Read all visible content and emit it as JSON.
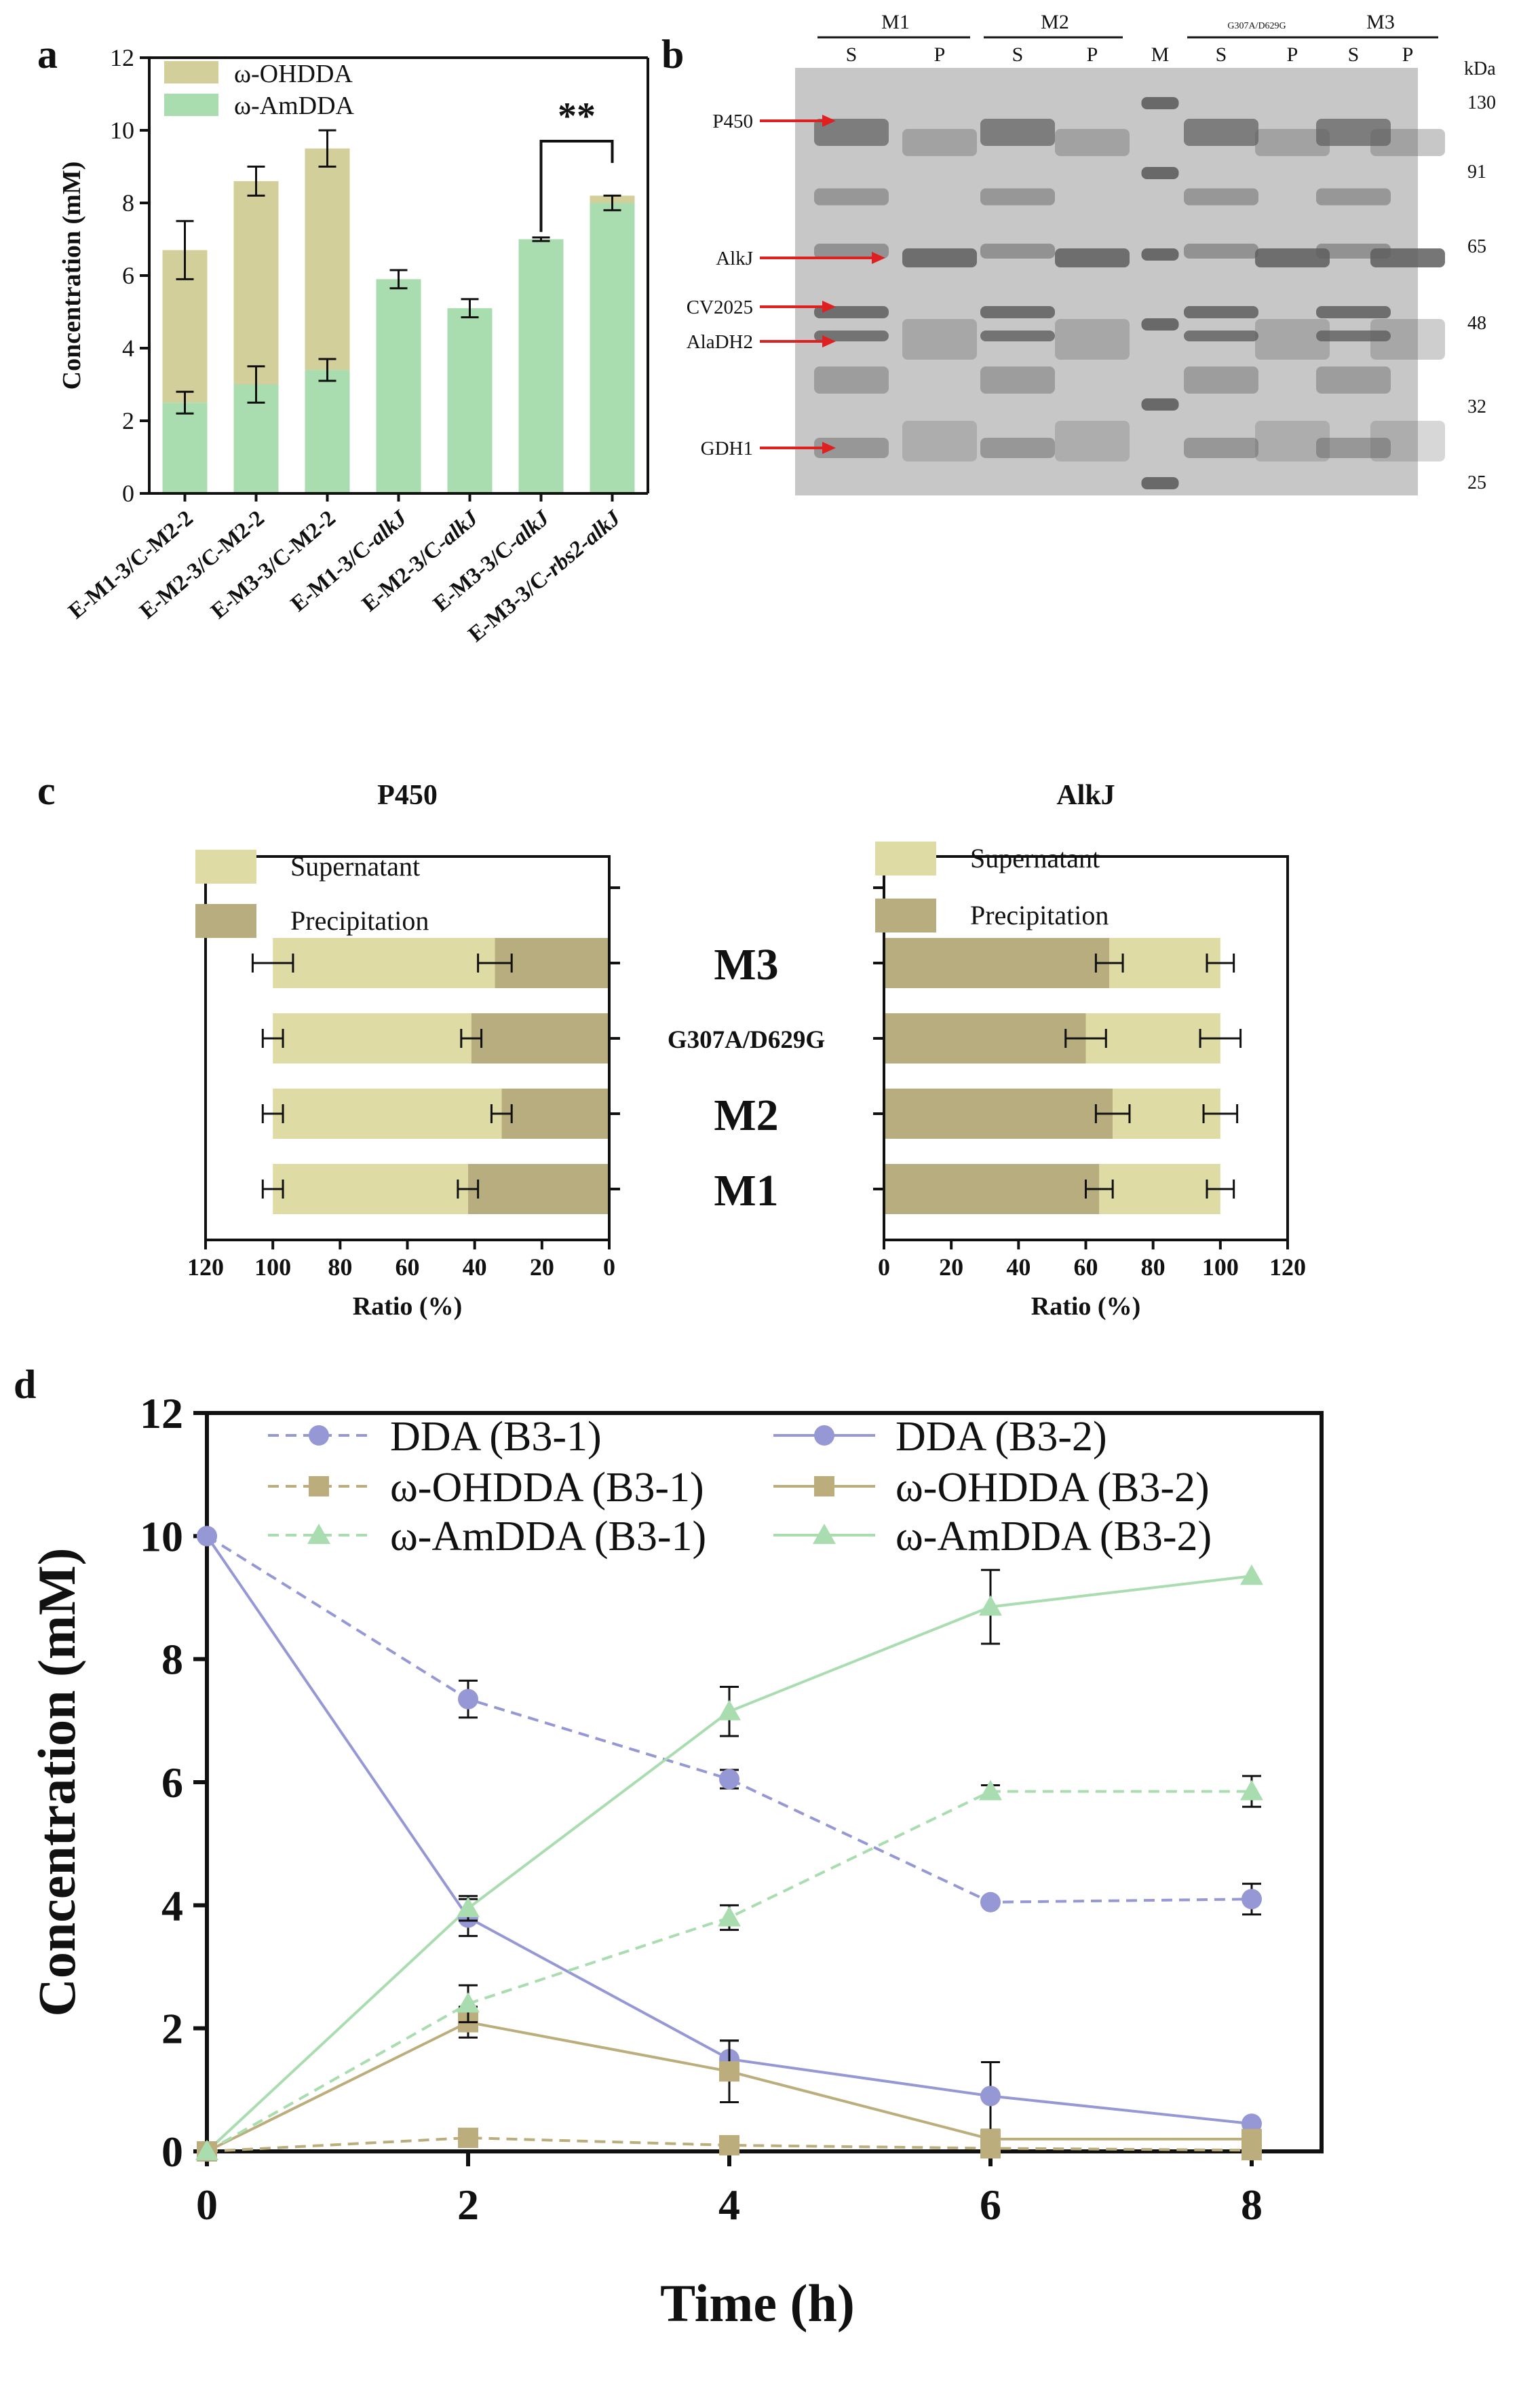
{
  "panels": {
    "a": "a",
    "b": "b",
    "c": "c",
    "d": "d"
  },
  "colors": {
    "ohdda_bar": "#d3cf9a",
    "amdda_bar": "#a9ddb0",
    "gel_bg": "#c7c7c7",
    "gel_band": "#5e5e5e",
    "arrow": "#e02020",
    "supernatant": "#dfdba4",
    "precipitation": "#b8ad7e",
    "dda": "#9698d6",
    "ohdda_line": "#bcae7c",
    "amdda_line": "#a9ddb0"
  },
  "chart_data": [
    {
      "id": "a",
      "type": "bar",
      "stacked": true,
      "title": "",
      "xlabel": "",
      "ylabel": "Concentration (mM)",
      "ylim": [
        0,
        12
      ],
      "yticks": [
        0,
        2,
        4,
        6,
        8,
        10,
        12
      ],
      "categories": [
        [
          "E-M1-3/C-M2-2"
        ],
        [
          "E-M2-3/C-M2-2"
        ],
        [
          "E-M3-3/C-M2-2"
        ],
        [
          "E-M1-3/C-",
          "alkJ"
        ],
        [
          "E-M2-3/C-",
          "alkJ"
        ],
        [
          "E-M3-3/C-",
          "alkJ"
        ],
        [
          "E-M3-3/C-",
          "rbs2-alkJ"
        ]
      ],
      "series": [
        {
          "name": "ω-AmDDA",
          "values": [
            2.5,
            3.0,
            3.4,
            5.9,
            5.1,
            7.0,
            8.0
          ],
          "errors": [
            0.3,
            0.5,
            0.3,
            0.25,
            0.25,
            0.05,
            0.2
          ],
          "color": "#a9ddb0"
        },
        {
          "name": "ω-OHDDA",
          "totals": [
            6.7,
            8.6,
            9.5,
            5.9,
            5.1,
            7.0,
            8.2
          ],
          "errors": [
            0.8,
            0.4,
            0.5,
            0,
            0,
            0,
            0
          ],
          "color": "#d3cf9a"
        }
      ],
      "legend": [
        "ω-OHDDA",
        "ω-AmDDA"
      ],
      "legend_position": "top-left",
      "annotation": "**"
    },
    {
      "id": "b",
      "type": "gel",
      "group_labels": [
        "M1",
        "M2",
        "G307A/D629G",
        "M3"
      ],
      "lane_labels": [
        "S",
        "P",
        "S",
        "P",
        "M",
        "S",
        "P",
        "S",
        "P"
      ],
      "unit_label": "kDa",
      "markers": [
        "130",
        "91",
        "65",
        "48",
        "32",
        "25"
      ],
      "protein_labels": [
        "P450",
        "AlkJ",
        "CV2025",
        "AlaDH2",
        "GDH1"
      ]
    },
    {
      "id": "c-left",
      "type": "bar",
      "orientation": "horizontal",
      "stacked": true,
      "title": "P450",
      "xlabel": "Ratio (%)",
      "xlim": [
        120,
        0
      ],
      "xticks": [
        "120",
        "100",
        "80",
        "60",
        "40",
        "20",
        "0"
      ],
      "categories": [
        "M1",
        "M2",
        "G307A/D629G",
        "M3"
      ],
      "series": [
        {
          "name": "Supernatant",
          "values": [
            58,
            68,
            59,
            66
          ],
          "total_errors": [
            3,
            3,
            3,
            6
          ]
        },
        {
          "name": "Precipitation",
          "values": [
            42,
            32,
            41,
            34
          ],
          "errors": [
            3,
            3,
            3,
            5
          ]
        }
      ],
      "legend": [
        "Supernatant",
        "Precipitation"
      ]
    },
    {
      "id": "c-right",
      "type": "bar",
      "orientation": "horizontal",
      "stacked": true,
      "title": "AlkJ",
      "xlabel": "Ratio (%)",
      "xlim": [
        0,
        120
      ],
      "xticks": [
        "0",
        "20",
        "40",
        "60",
        "80",
        "100",
        "120"
      ],
      "categories": [
        "M1",
        "M2",
        "G307A/D629G",
        "M3"
      ],
      "series": [
        {
          "name": "Precipitation",
          "values": [
            64,
            68,
            60,
            67
          ],
          "errors": [
            4,
            5,
            6,
            4
          ]
        },
        {
          "name": "Supernatant",
          "values": [
            36,
            32,
            40,
            33
          ],
          "total_errors": [
            4,
            5,
            6,
            4
          ]
        }
      ],
      "legend": [
        "Supernatant",
        "Precipitation"
      ],
      "category_label_style": "bold"
    },
    {
      "id": "d",
      "type": "line",
      "xlabel": "Time (h)",
      "ylabel": "Concentration (mM)",
      "xlim": [
        0,
        8
      ],
      "ylim": [
        0,
        12
      ],
      "xticks": [
        0,
        2,
        4,
        6,
        8
      ],
      "yticks": [
        0,
        2,
        4,
        6,
        8,
        10,
        12
      ],
      "x": [
        0,
        2,
        4,
        6,
        8
      ],
      "series": [
        {
          "name": "DDA (B3-1)",
          "values": [
            10,
            7.35,
            6.05,
            4.05,
            4.1
          ],
          "errors": [
            0,
            0.3,
            0.15,
            0.05,
            0.25
          ],
          "marker": "circle",
          "dashed": true,
          "color": "#9698d6"
        },
        {
          "name": "DDA (B3-2)",
          "values": [
            10,
            3.8,
            1.5,
            0.9,
            0.45
          ],
          "errors": [
            0,
            0.3,
            0.3,
            0.55,
            0.05
          ],
          "marker": "circle",
          "dashed": false,
          "color": "#9698d6"
        },
        {
          "name": "ω-OHDDA (B3-1)",
          "values": [
            0,
            0.22,
            0.1,
            0.05,
            0.02
          ],
          "errors": [
            0,
            0.05,
            0.05,
            0.05,
            0.05
          ],
          "marker": "square",
          "dashed": true,
          "color": "#bcae7c"
        },
        {
          "name": "ω-OHDDA (B3-2)",
          "values": [
            0,
            2.1,
            1.3,
            0.2,
            0.2
          ],
          "errors": [
            0,
            0.25,
            0.5,
            0.1,
            0.05
          ],
          "marker": "square",
          "dashed": false,
          "color": "#bcae7c"
        },
        {
          "name": "ω-AmDDA (B3-1)",
          "values": [
            0,
            2.4,
            3.8,
            5.85,
            5.85
          ],
          "errors": [
            0,
            0.3,
            0.2,
            0.1,
            0.25
          ],
          "marker": "triangle",
          "dashed": true,
          "color": "#a9ddb0"
        },
        {
          "name": "ω-AmDDA (B3-2)",
          "values": [
            0,
            3.95,
            7.15,
            8.85,
            9.35
          ],
          "errors": [
            0,
            0.2,
            0.4,
            0.6,
            0.05
          ],
          "marker": "triangle",
          "dashed": false,
          "color": "#a9ddb0"
        }
      ],
      "legend_position": "top"
    }
  ]
}
